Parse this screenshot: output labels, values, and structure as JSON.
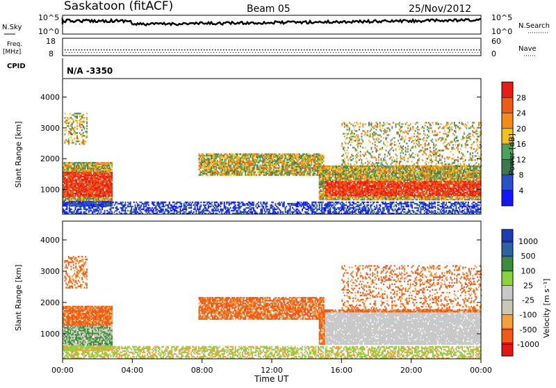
{
  "header": {
    "station": "Saskatoon (fitACF)",
    "beam": "Beam 05",
    "date": "25/Nov/2012"
  },
  "top_panels": {
    "nsky_label": "N.Sky",
    "nsky_ticks": [
      "10^5",
      "10^0"
    ],
    "nsearch_label": "N.Search",
    "nsearch_ticks": [
      "10^5",
      "10^0"
    ],
    "freq_label_1": "Freq.",
    "freq_label_2": "[MHz]",
    "freq_ticks": [
      "18",
      "8"
    ],
    "nave_label": "Nave",
    "nave_ticks": [
      "60",
      "0"
    ],
    "cpid_label": "CPID",
    "cpid_value": "N/A -3350"
  },
  "colors": {
    "power_scale": [
      "#1414ff",
      "#2850c8",
      "#3c7a4e",
      "#4fa060",
      "#f2c01a",
      "#f28c14",
      "#f05a14",
      "#e61e14"
    ],
    "velocity_scale": [
      "#e61414",
      "#f05a14",
      "#f5a03c",
      "#c8c8b4",
      "#c8c8c8",
      "#8cd23c",
      "#3c8c3c",
      "#2e62a0",
      "#1e3cb4"
    ]
  },
  "chart_data": [
    {
      "type": "heatmap",
      "name": "power",
      "ylabel": "Slant Range [km]",
      "xlabel": "Time UT",
      "yticks": [
        "1000",
        "2000",
        "3000",
        "4000"
      ],
      "ylim": [
        200,
        4600
      ],
      "xticks": [
        "00:00",
        "04:00",
        "08:00",
        "12:00",
        "16:00",
        "20:00",
        "00:00"
      ],
      "xlim_hours": [
        0,
        24
      ],
      "colorbar_label": "Power [dB]",
      "colorbar_ticks": [
        "4",
        "8",
        "12",
        "16",
        "20",
        "24",
        "28"
      ],
      "colorbar_range": [
        0,
        32
      ]
    },
    {
      "type": "heatmap",
      "name": "velocity",
      "ylabel": "Slant Range [km]",
      "xlabel": "Time UT",
      "yticks": [
        "1000",
        "2000",
        "3000",
        "4000"
      ],
      "ylim": [
        200,
        4600
      ],
      "xticks": [
        "00:00",
        "04:00",
        "08:00",
        "12:00",
        "16:00",
        "20:00",
        "00:00"
      ],
      "xlim_hours": [
        0,
        24
      ],
      "colorbar_label": "Velocity [m s⁻¹]",
      "colorbar_ticks": [
        "1000",
        "500",
        "100",
        "25",
        "-25",
        "-100",
        "-500",
        "-1000"
      ]
    }
  ]
}
